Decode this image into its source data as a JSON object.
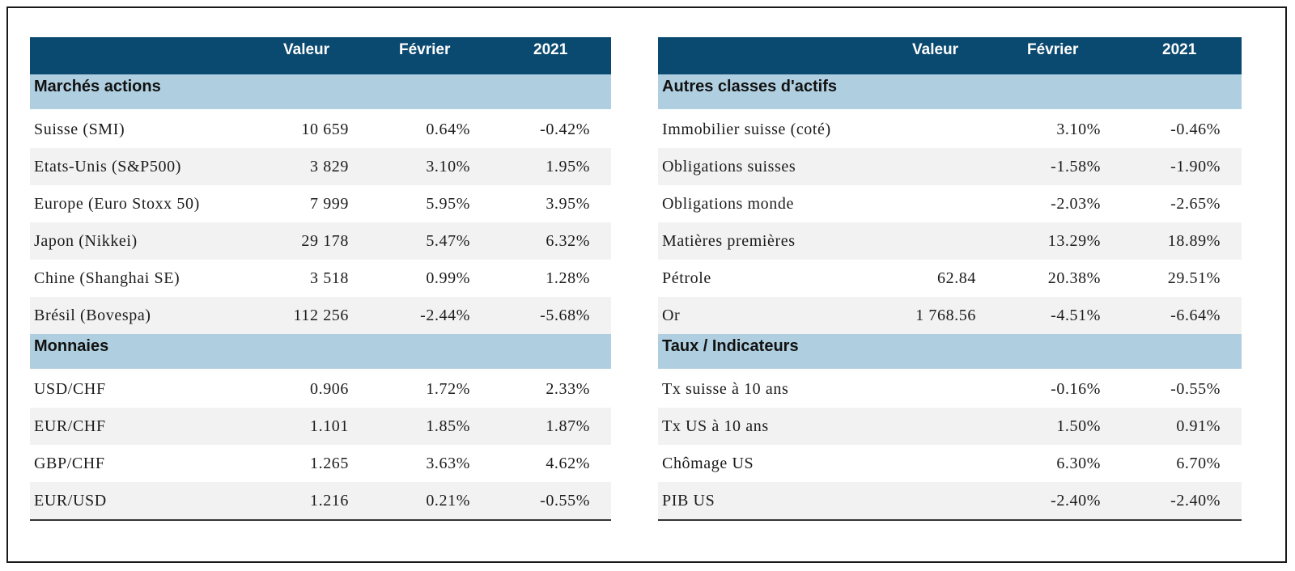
{
  "left": {
    "headers": [
      "Valeur",
      "Février",
      "2021"
    ],
    "sections": [
      {
        "title": "Marchés actions",
        "rows": [
          {
            "name": "Suisse (SMI)",
            "value": "10 659",
            "feb": "0.64%",
            "ytd": "-0.42%"
          },
          {
            "name": "Etats-Unis (S&P500)",
            "value": "3 829",
            "feb": "3.10%",
            "ytd": "1.95%"
          },
          {
            "name": "Europe (Euro Stoxx 50)",
            "value": "7 999",
            "feb": "5.95%",
            "ytd": "3.95%"
          },
          {
            "name": "Japon (Nikkei)",
            "value": "29 178",
            "feb": "5.47%",
            "ytd": "6.32%"
          },
          {
            "name": "Chine (Shanghai SE)",
            "value": "3 518",
            "feb": "0.99%",
            "ytd": "1.28%"
          },
          {
            "name": "Brésil (Bovespa)",
            "value": "112 256",
            "feb": "-2.44%",
            "ytd": "-5.68%"
          }
        ]
      },
      {
        "title": "Monnaies",
        "rows": [
          {
            "name": "USD/CHF",
            "value": "0.906",
            "feb": "1.72%",
            "ytd": "2.33%"
          },
          {
            "name": "EUR/CHF",
            "value": "1.101",
            "feb": "1.85%",
            "ytd": "1.87%"
          },
          {
            "name": "GBP/CHF",
            "value": "1.265",
            "feb": "3.63%",
            "ytd": "4.62%"
          },
          {
            "name": "EUR/USD",
            "value": "1.216",
            "feb": "0.21%",
            "ytd": "-0.55%"
          }
        ]
      }
    ]
  },
  "right": {
    "headers": [
      "Valeur",
      "Février",
      "2021"
    ],
    "sections": [
      {
        "title": "Autres classes d'actifs",
        "rows": [
          {
            "name": "Immobilier suisse (coté)",
            "value": "",
            "feb": "3.10%",
            "ytd": "-0.46%"
          },
          {
            "name": "Obligations suisses",
            "value": "",
            "feb": "-1.58%",
            "ytd": "-1.90%"
          },
          {
            "name": "Obligations monde",
            "value": "",
            "feb": "-2.03%",
            "ytd": "-2.65%"
          },
          {
            "name": "Matières premières",
            "value": "",
            "feb": "13.29%",
            "ytd": "18.89%"
          },
          {
            "name": "Pétrole",
            "value": "62.84",
            "feb": "20.38%",
            "ytd": "29.51%"
          },
          {
            "name": "Or",
            "value": "1 768.56",
            "feb": "-4.51%",
            "ytd": "-6.64%"
          }
        ]
      },
      {
        "title": "Taux / Indicateurs",
        "rows": [
          {
            "name": "Tx suisse à 10 ans",
            "value": "",
            "feb": "-0.16%",
            "ytd": "-0.55%"
          },
          {
            "name": "Tx US à 10 ans",
            "value": "",
            "feb": "1.50%",
            "ytd": "0.91%"
          },
          {
            "name": "Chômage US",
            "value": "",
            "feb": "6.30%",
            "ytd": "6.70%"
          },
          {
            "name": "PIB US",
            "value": "",
            "feb": "-2.40%",
            "ytd": "-2.40%"
          }
        ]
      }
    ]
  }
}
